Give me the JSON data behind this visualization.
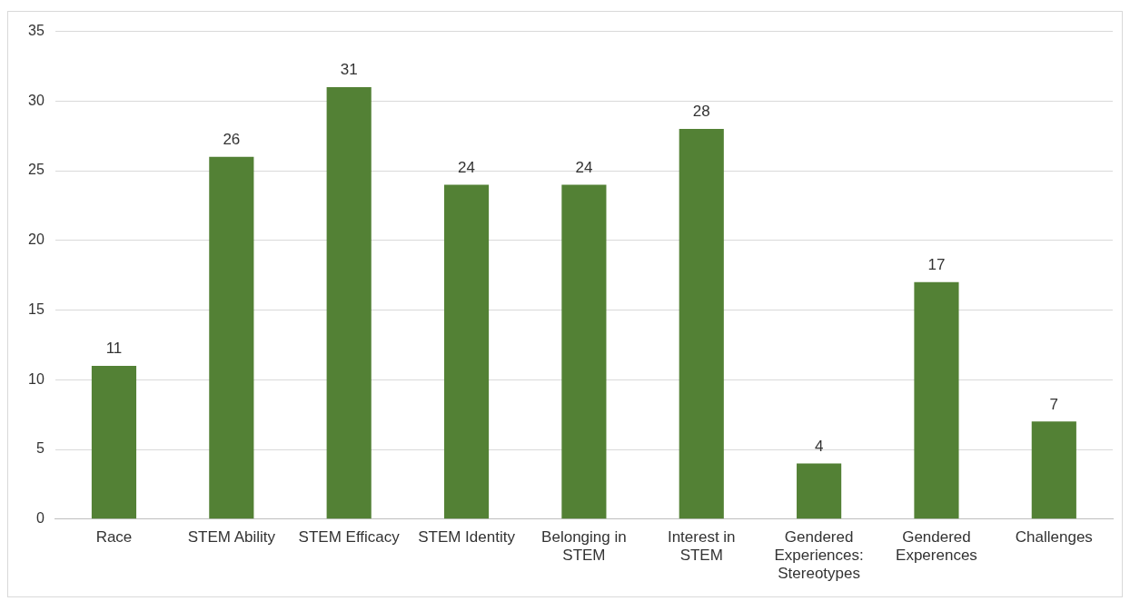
{
  "chart_data": {
    "type": "bar",
    "categories": [
      "Race",
      "STEM Ability",
      "STEM Efficacy",
      "STEM Identity",
      "Belonging in STEM",
      "Interest in STEM",
      "Gendered Experiences: Stereotypes",
      "Gendered Experences",
      "Challenges"
    ],
    "values": [
      11,
      26,
      31,
      24,
      24,
      28,
      4,
      17,
      7
    ],
    "color": "#538135",
    "ylim": [
      0,
      35
    ],
    "yticks": [
      0,
      5,
      10,
      15,
      20,
      25,
      30,
      35
    ],
    "grid": "y",
    "data_labels": true,
    "legend": false
  }
}
